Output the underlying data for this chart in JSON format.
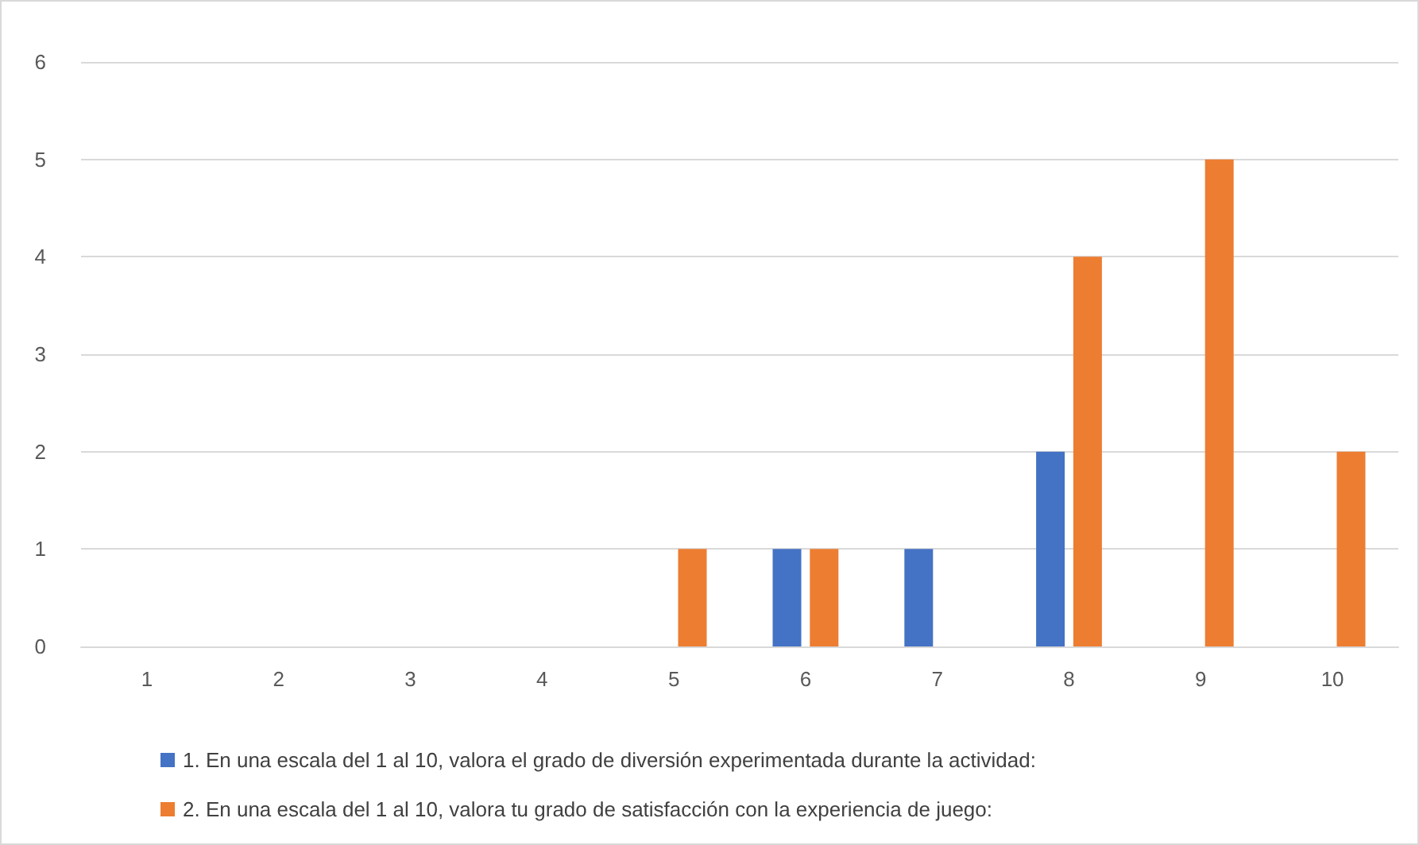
{
  "chart_data": {
    "type": "bar",
    "categories": [
      "1",
      "2",
      "3",
      "4",
      "5",
      "6",
      "7",
      "8",
      "9",
      "10"
    ],
    "series": [
      {
        "name": "1. En una escala del 1 al 10, valora el grado de diversión experimentada durante la actividad:",
        "color": "#4472c4",
        "values": [
          0,
          0,
          0,
          0,
          0,
          1,
          1,
          2,
          0,
          0
        ]
      },
      {
        "name": "2. En una escala del 1 al 10, valora tu grado de satisfacción con la experiencia de juego:",
        "color": "#ed7d31",
        "values": [
          0,
          0,
          0,
          0,
          1,
          1,
          0,
          4,
          5,
          2
        ]
      }
    ],
    "ylim": [
      0,
      6
    ],
    "yticks": [
      0,
      1,
      2,
      3,
      4,
      5,
      6
    ],
    "grid": "y",
    "legend": "bottom"
  }
}
